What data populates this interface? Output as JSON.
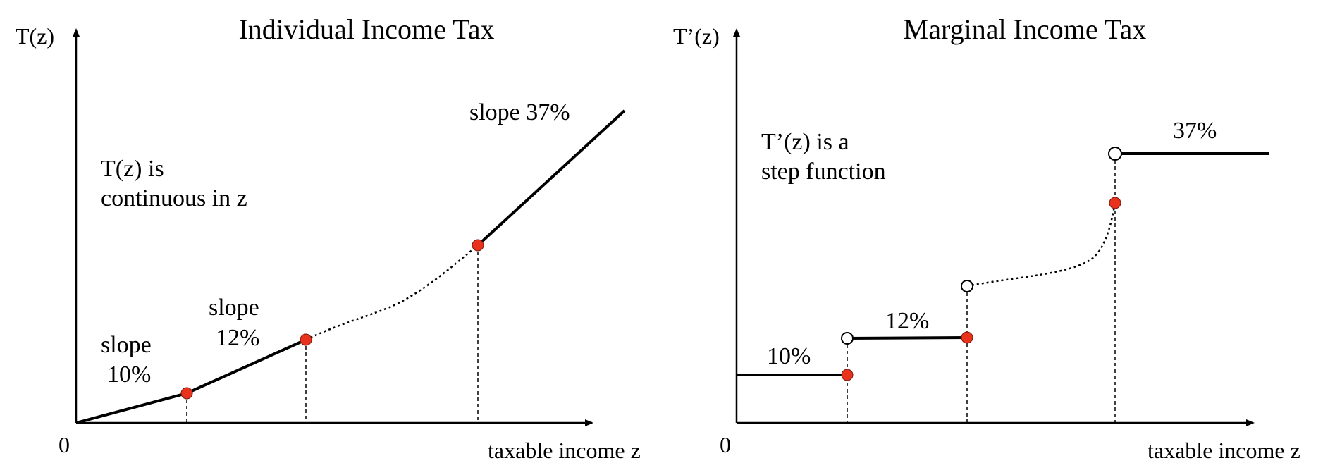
{
  "left_panel": {
    "title": "Individual Income Tax",
    "y_axis_label": "T(z)",
    "x_axis_label": "taxable income z",
    "origin_label": "0",
    "note_line1": "T(z) is",
    "note_line2": "continuous in z",
    "slope1_line1": "slope",
    "slope1_line2": "10%",
    "slope2_line1": "slope",
    "slope2_line2": "12%",
    "slope3": "slope 37%"
  },
  "right_panel": {
    "title": "Marginal Income Tax",
    "y_axis_label": "T’(z)",
    "x_axis_label": "taxable income z",
    "origin_label": "0",
    "note_line1": "T’(z) is a",
    "note_line2": "step function",
    "rate1": "10%",
    "rate2": "12%",
    "rate3": "37%"
  },
  "colors": {
    "line": "#000000",
    "kink_point": "#e8321c",
    "open_point_fill": "#ffffff"
  }
}
